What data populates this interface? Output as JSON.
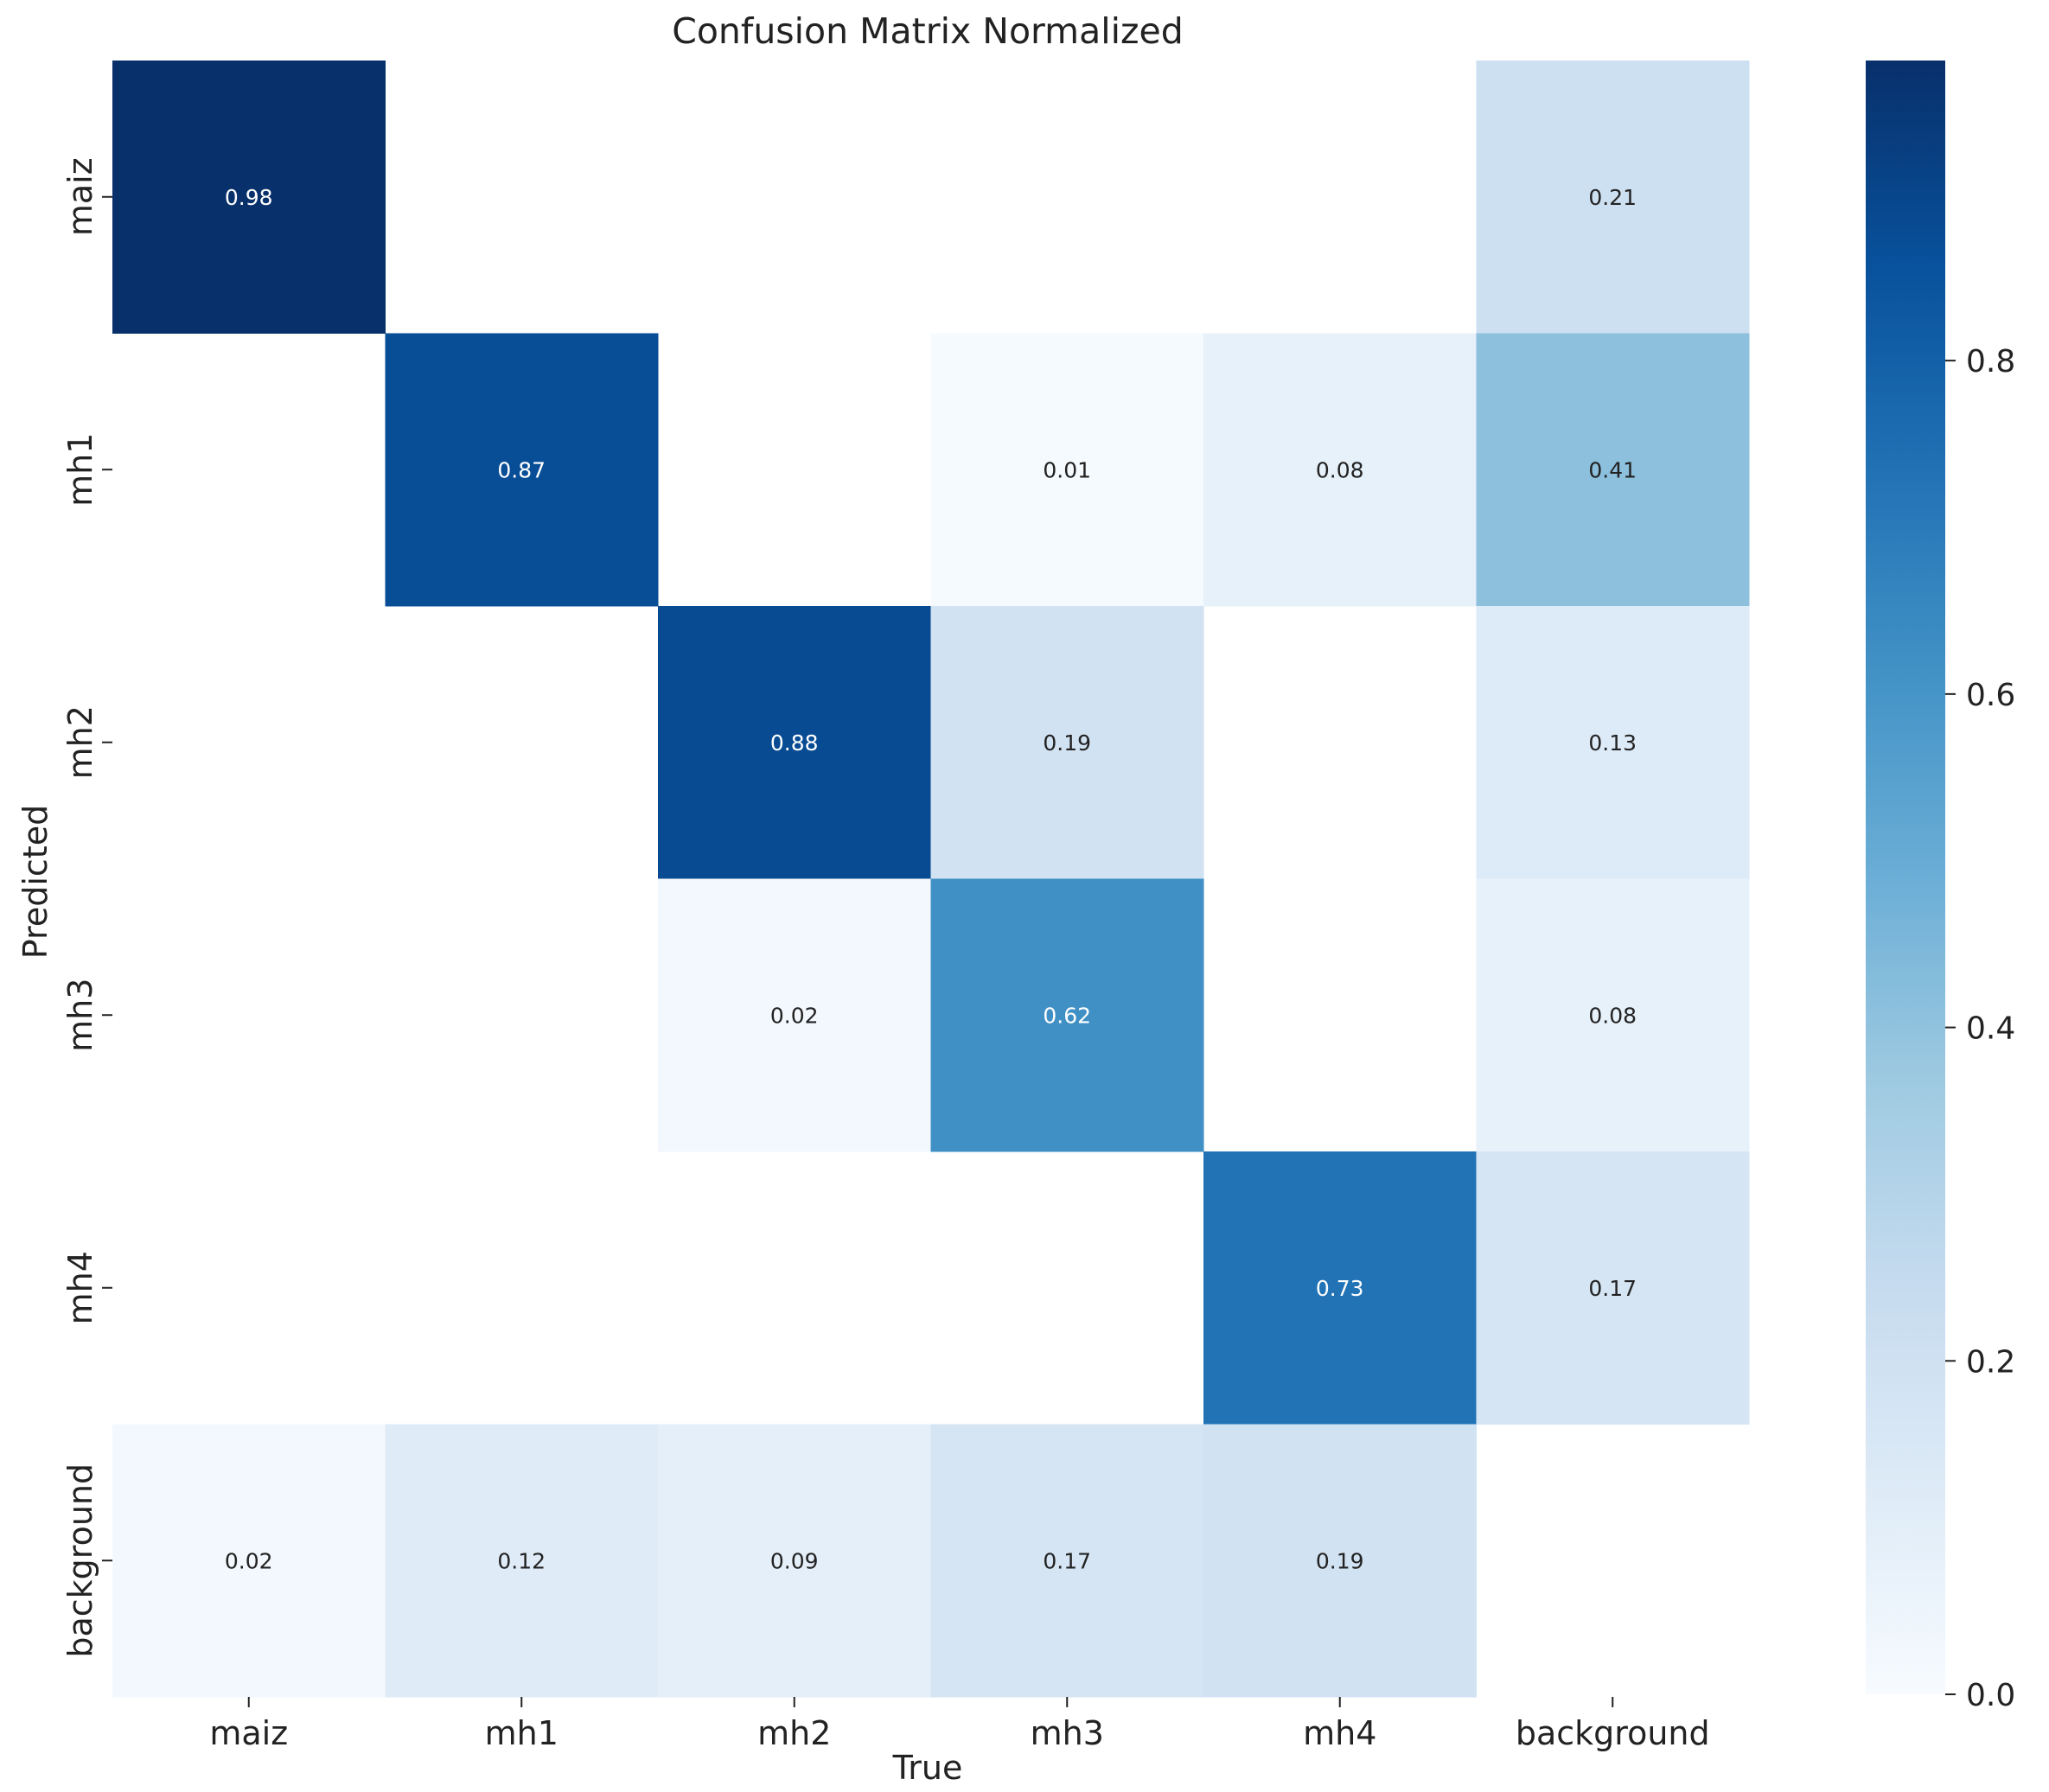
{
  "chart_data": {
    "type": "heatmap",
    "title": "Confusion Matrix Normalized",
    "xlabel": "True",
    "ylabel": "Predicted",
    "x_categories": [
      "maiz",
      "mh1",
      "mh2",
      "mh3",
      "mh4",
      "background"
    ],
    "y_categories": [
      "maiz",
      "mh1",
      "mh2",
      "mh3",
      "mh4",
      "background"
    ],
    "values": [
      [
        0.98,
        null,
        null,
        null,
        null,
        0.21
      ],
      [
        null,
        0.87,
        null,
        0.01,
        0.08,
        0.41
      ],
      [
        null,
        null,
        0.88,
        0.19,
        null,
        0.13
      ],
      [
        null,
        null,
        0.02,
        0.62,
        null,
        0.08
      ],
      [
        null,
        null,
        null,
        null,
        0.73,
        0.17
      ],
      [
        0.02,
        0.12,
        0.09,
        0.17,
        0.19,
        null
      ]
    ],
    "value_labels": [
      [
        "0.98",
        "",
        "",
        "",
        "",
        "0.21"
      ],
      [
        "",
        "0.87",
        "",
        "0.01",
        "0.08",
        "0.41"
      ],
      [
        "",
        "",
        "0.88",
        "0.19",
        "",
        "0.13"
      ],
      [
        "",
        "",
        "0.02",
        "0.62",
        "",
        "0.08"
      ],
      [
        "",
        "",
        "",
        "",
        "0.73",
        "0.17"
      ],
      [
        "0.02",
        "0.12",
        "0.09",
        "0.17",
        "0.19",
        ""
      ]
    ],
    "colormap": "Blues",
    "colorbar": {
      "range": [
        0.0,
        0.98
      ],
      "ticks": [
        0.0,
        0.2,
        0.4,
        0.6,
        0.8
      ],
      "tick_labels": [
        "0.0",
        "0.2",
        "0.4",
        "0.6",
        "0.8"
      ]
    }
  }
}
